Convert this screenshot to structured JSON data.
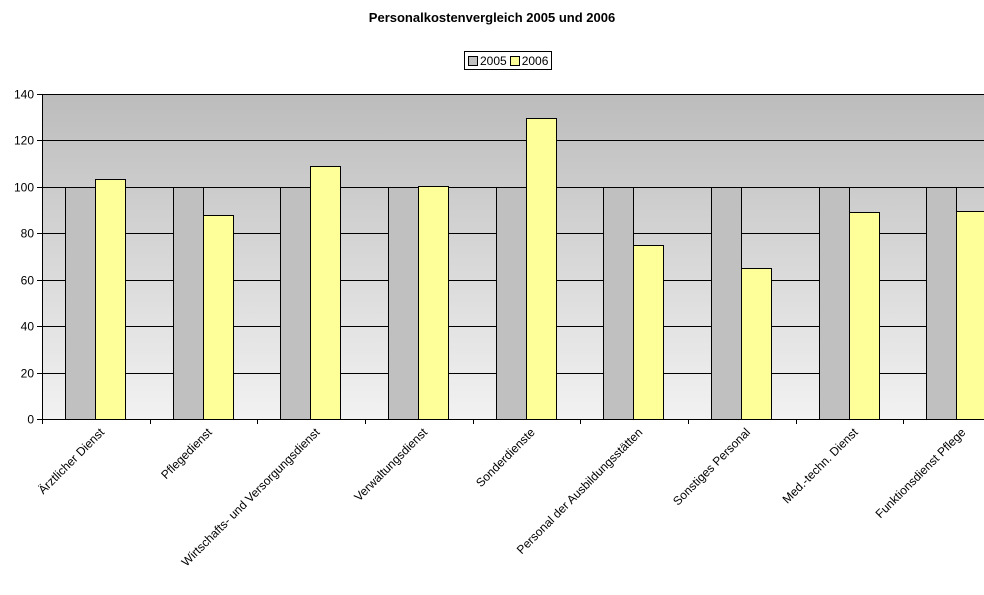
{
  "chart_data": {
    "type": "bar",
    "title": "Personalkostenvergleich 2005 und 2006",
    "xlabel": "",
    "ylabel": "",
    "ylim": [
      0,
      140
    ],
    "yticks": [
      0,
      20,
      40,
      60,
      80,
      100,
      120,
      140
    ],
    "grid": true,
    "legend_position": "top-center",
    "categories": [
      "Ärztlicher Dienst",
      "Pflegedienst",
      "Wirtschafts- und Versorgungsdienst",
      "Verwaltungsdienst",
      "Sonderdienste",
      "Personal der Ausbildungsstätten",
      "Sonstiges Personal",
      "Med.-techn. Dienst",
      "Funktionsdienst Pflege"
    ],
    "series": [
      {
        "name": "2005",
        "color": "#c0c0c0",
        "values": [
          100,
          100,
          100,
          100,
          100,
          100,
          100,
          100,
          100
        ]
      },
      {
        "name": "2006",
        "color": "#ffff99",
        "values": [
          103.5,
          88,
          109,
          100.5,
          129.5,
          75,
          65,
          89,
          89.5
        ]
      }
    ]
  }
}
